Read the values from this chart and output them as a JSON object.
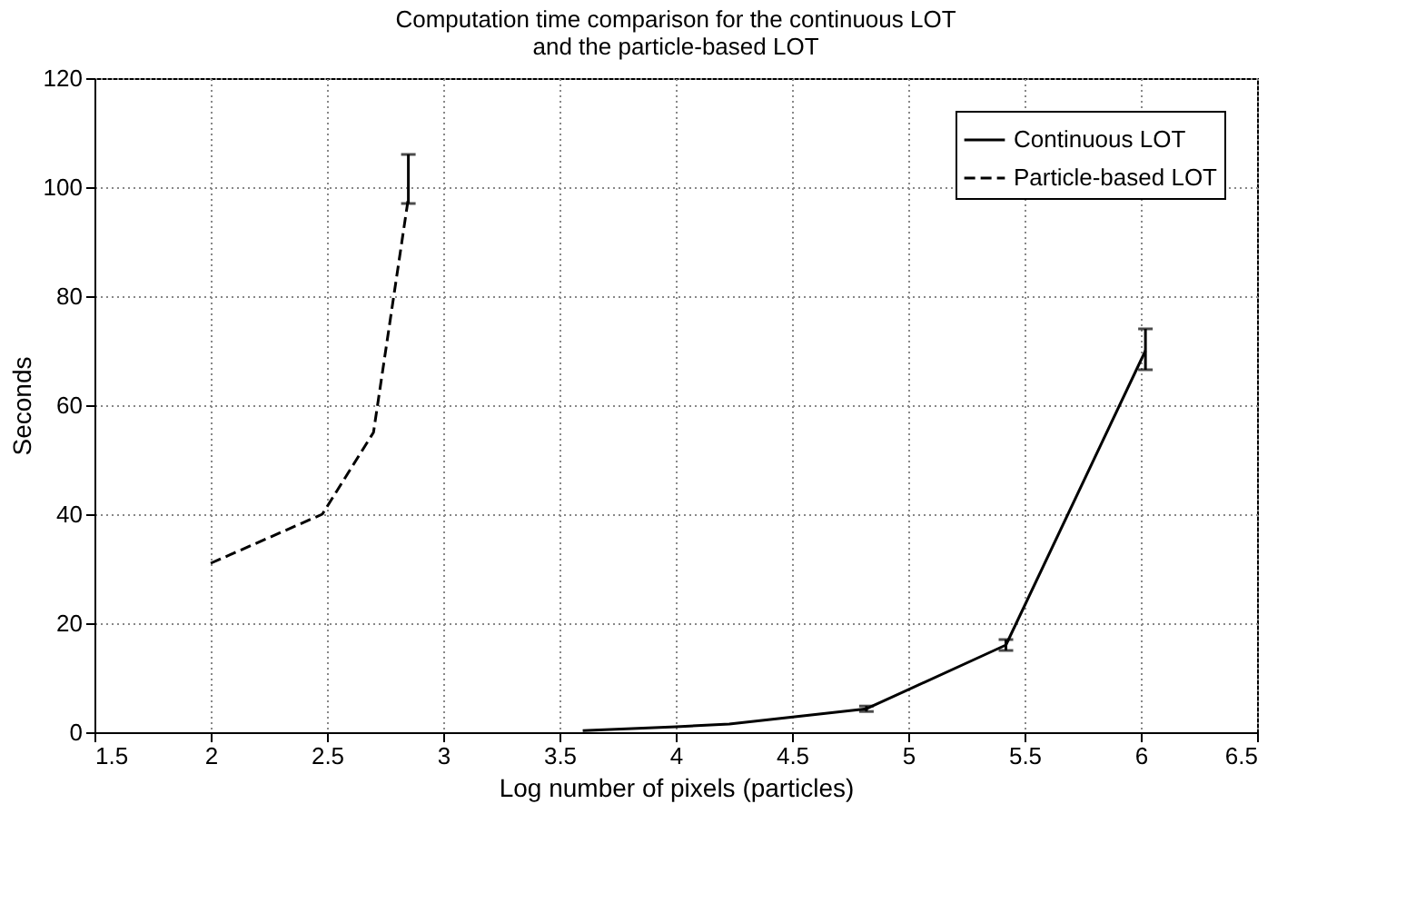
{
  "chart_data": {
    "type": "line",
    "title": "Computation time comparison for the continuous LOT\nand the particle-based LOT",
    "xlabel": "Log number of pixels (particles)",
    "ylabel": "Seconds",
    "xlim": [
      1.5,
      6.5
    ],
    "xticks": [
      1.5,
      2,
      2.5,
      3,
      3.5,
      4,
      4.5,
      5,
      5.5,
      6,
      6.5
    ],
    "ylim": [
      0,
      120
    ],
    "yticks": [
      0,
      20,
      40,
      60,
      80,
      100,
      120
    ],
    "grid": true,
    "legend": "top right",
    "marker": "none",
    "series": [
      {
        "name": "Continuous LOT",
        "color": "#000000",
        "line_style": "solid",
        "x": [
          3.6,
          4.0,
          4.23,
          4.82,
          5.42,
          6.02
        ],
        "values": [
          0.3,
          1,
          1.5,
          4.3,
          16,
          70
        ],
        "errors": [
          null,
          null,
          null,
          [
            3.8,
            4.8
          ],
          [
            15,
            17
          ],
          [
            66.5,
            74
          ]
        ]
      },
      {
        "name": "Particle-based LOT",
        "color": "#000000",
        "line_style": "dashed",
        "x": [
          2,
          2.48,
          2.7,
          2.85
        ],
        "values": [
          31,
          40,
          55,
          98
        ],
        "errors": [
          null,
          null,
          null,
          [
            97,
            106
          ]
        ]
      }
    ]
  }
}
